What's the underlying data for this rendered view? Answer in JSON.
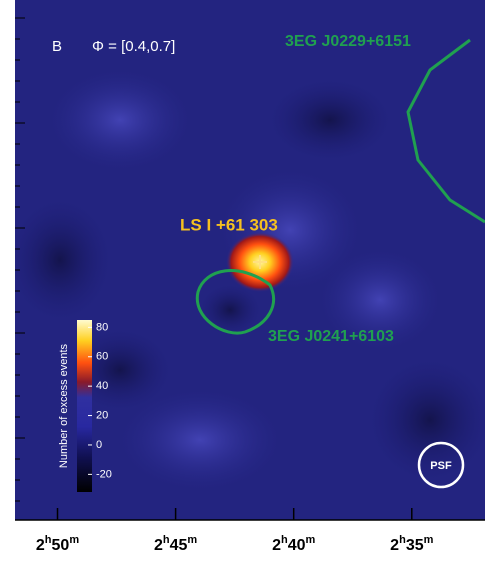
{
  "panel": {
    "label": "B",
    "phase": "Φ = [0.4,0.7]"
  },
  "sources": [
    {
      "label": "3EG J0229+6151"
    },
    {
      "label": "LS I +61 303"
    },
    {
      "label": "3EG J0241+6103"
    }
  ],
  "colorbar": {
    "label": "Number of excess events",
    "lim": [
      -32,
      85
    ],
    "ticks": [
      -20,
      0,
      20,
      40,
      60,
      80
    ]
  },
  "xaxis": {
    "lim": [
      171.8,
      151.9
    ],
    "ticks": [
      {
        "value": 170,
        "label": [
          "2",
          "h",
          "50",
          "m"
        ]
      },
      {
        "value": 165,
        "label": [
          "2",
          "h",
          "45",
          "m"
        ]
      },
      {
        "value": 160,
        "label": [
          "2",
          "h",
          "40",
          "m"
        ]
      },
      {
        "value": 155,
        "label": [
          "2",
          "h",
          "35",
          "m"
        ]
      }
    ]
  },
  "psf": "PSF"
}
